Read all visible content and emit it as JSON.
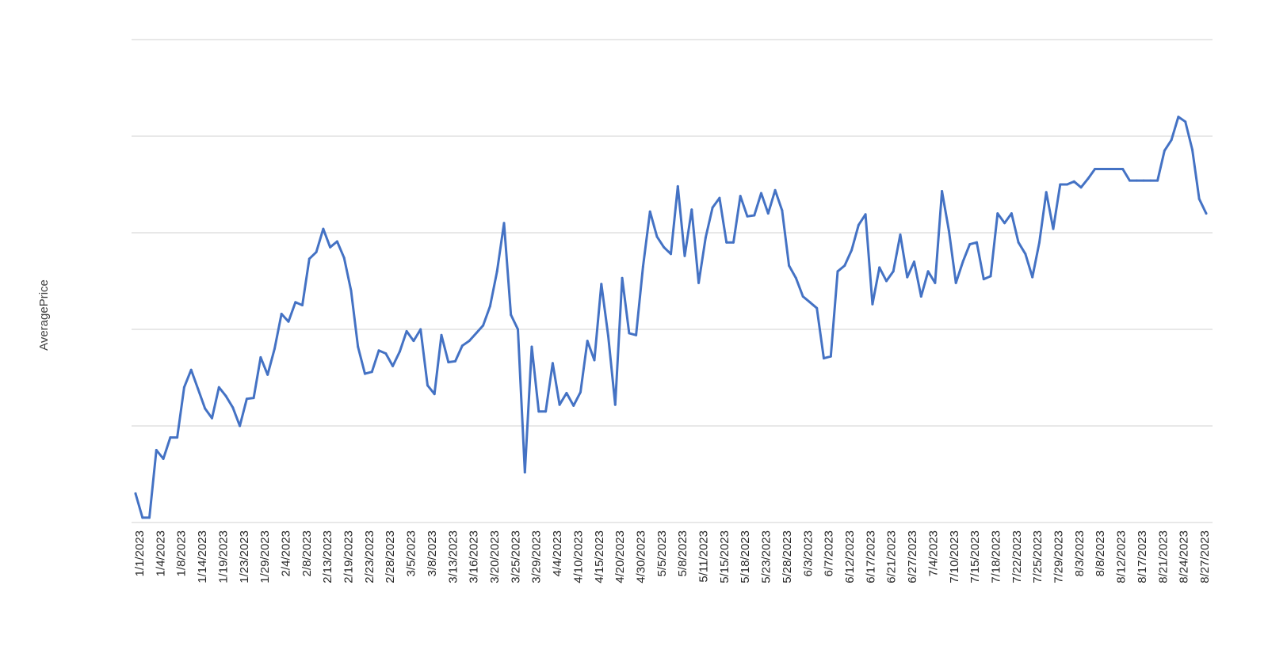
{
  "chart_data": {
    "type": "line",
    "title": "",
    "xlabel": "",
    "ylabel": "AveragePrice",
    "grid": true,
    "legend": "none",
    "y_tick_labels_visible": false,
    "line_color": "#4472C4",
    "gridline_color": "#d9d9d9",
    "x_tick_labels": [
      "1/1/2023",
      "1/4/2023",
      "1/8/2023",
      "1/14/2023",
      "1/19/2023",
      "1/23/2023",
      "1/29/2023",
      "2/4/2023",
      "2/8/2023",
      "2/13/2023",
      "2/19/2023",
      "2/23/2023",
      "2/28/2023",
      "3/5/2023",
      "3/8/2023",
      "3/13/2023",
      "3/16/2023",
      "3/20/2023",
      "3/25/2023",
      "3/29/2023",
      "4/4/2023",
      "4/10/2023",
      "4/15/2023",
      "4/20/2023",
      "4/30/2023",
      "5/5/2023",
      "5/8/2023",
      "5/11/2023",
      "5/15/2023",
      "5/18/2023",
      "5/23/2023",
      "5/28/2023",
      "6/3/2023",
      "6/7/2023",
      "6/12/2023",
      "6/17/2023",
      "6/21/2023",
      "6/27/2023",
      "7/4/2023",
      "7/10/2023",
      "7/15/2023",
      "7/18/2023",
      "7/22/2023",
      "7/25/2023",
      "7/29/2023",
      "8/3/2023",
      "8/8/2023",
      "8/12/2023",
      "8/17/2023",
      "8/21/2023",
      "8/24/2023",
      "8/27/2023"
    ],
    "ylim": [
      0,
      5
    ],
    "y_gridlines": [
      0,
      1,
      2,
      3,
      4,
      5
    ],
    "values": [
      0.3,
      0.05,
      0.05,
      0.75,
      0.66,
      0.88,
      0.88,
      1.4,
      1.58,
      1.38,
      1.18,
      1.08,
      1.4,
      1.31,
      1.19,
      1.0,
      1.28,
      1.29,
      1.71,
      1.53,
      1.8,
      2.16,
      2.08,
      2.28,
      2.25,
      2.73,
      2.8,
      3.04,
      2.85,
      2.91,
      2.74,
      2.4,
      1.82,
      1.54,
      1.56,
      1.78,
      1.75,
      1.62,
      1.77,
      1.98,
      1.88,
      2.0,
      1.42,
      1.33,
      1.94,
      1.66,
      1.67,
      1.83,
      1.88,
      1.96,
      2.04,
      2.24,
      2.6,
      3.1,
      2.15,
      2.0,
      0.52,
      1.82,
      1.15,
      1.15,
      1.65,
      1.22,
      1.34,
      1.21,
      1.35,
      1.88,
      1.68,
      2.47,
      1.93,
      1.22,
      2.53,
      1.96,
      1.94,
      2.65,
      3.22,
      2.96,
      2.85,
      2.78,
      3.48,
      2.76,
      3.24,
      2.48,
      2.95,
      3.26,
      3.36,
      2.9,
      2.9,
      3.38,
      3.17,
      3.18,
      3.41,
      3.2,
      3.44,
      3.23,
      2.66,
      2.53,
      2.34,
      2.28,
      2.22,
      1.7,
      1.72,
      2.6,
      2.66,
      2.82,
      3.08,
      3.19,
      2.26,
      2.64,
      2.5,
      2.6,
      2.98,
      2.54,
      2.7,
      2.34,
      2.6,
      2.48,
      3.43,
      3.02,
      2.48,
      2.7,
      2.88,
      2.9,
      2.52,
      2.55,
      3.2,
      3.1,
      3.2,
      2.9,
      2.78,
      2.54,
      2.9,
      3.42,
      3.04,
      3.5,
      3.5,
      3.53,
      3.47,
      3.56,
      3.66,
      3.66,
      3.66,
      3.66,
      3.66,
      3.54,
      3.54,
      3.54,
      3.54,
      3.54,
      3.85,
      3.96,
      4.2,
      4.15,
      3.86,
      3.35,
      3.2
    ]
  }
}
